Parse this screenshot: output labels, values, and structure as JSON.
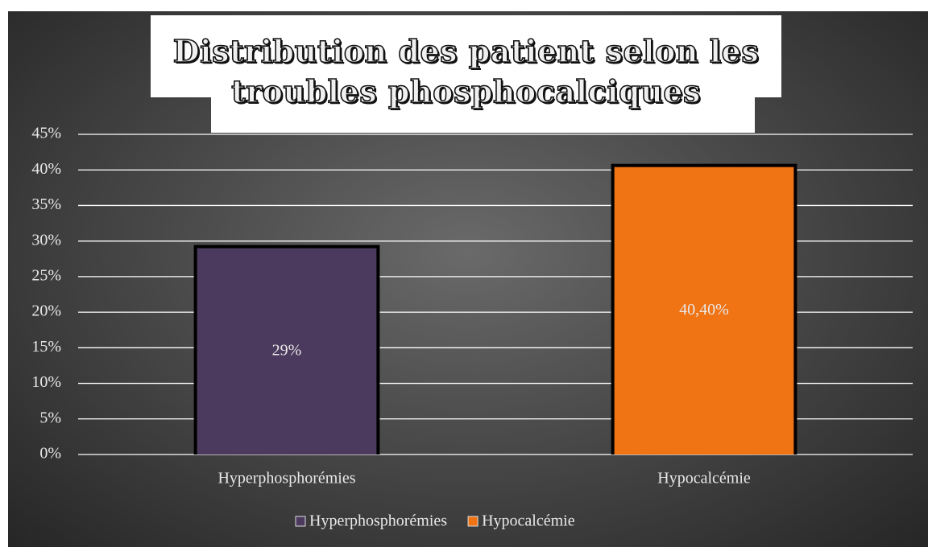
{
  "chart_data": {
    "type": "bar",
    "title": "Distribution des patient selon les troubles phosphocalciques",
    "categories": [
      "Hyperphosphorémies",
      "Hypocalcémie"
    ],
    "series": [
      {
        "name": "Hyperphosphorémies",
        "color": "#4b3a5e",
        "values": [
          29,
          null
        ],
        "value_labels": [
          "29%",
          null
        ]
      },
      {
        "name": "Hypocalcémie",
        "color": "#f07314",
        "values": [
          null,
          40.4
        ],
        "value_labels": [
          null,
          "40,40%"
        ]
      }
    ],
    "ylim": [
      0,
      45
    ],
    "yticks": [
      {
        "value": 0,
        "label": "0%"
      },
      {
        "value": 5,
        "label": "5%"
      },
      {
        "value": 10,
        "label": "10%"
      },
      {
        "value": 15,
        "label": "15%"
      },
      {
        "value": 20,
        "label": "20%"
      },
      {
        "value": 25,
        "label": "25%"
      },
      {
        "value": 30,
        "label": "30%"
      },
      {
        "value": 35,
        "label": "35%"
      },
      {
        "value": 40,
        "label": "40%"
      },
      {
        "value": 45,
        "label": "45%"
      }
    ],
    "grid": true,
    "legend": "bottom"
  }
}
